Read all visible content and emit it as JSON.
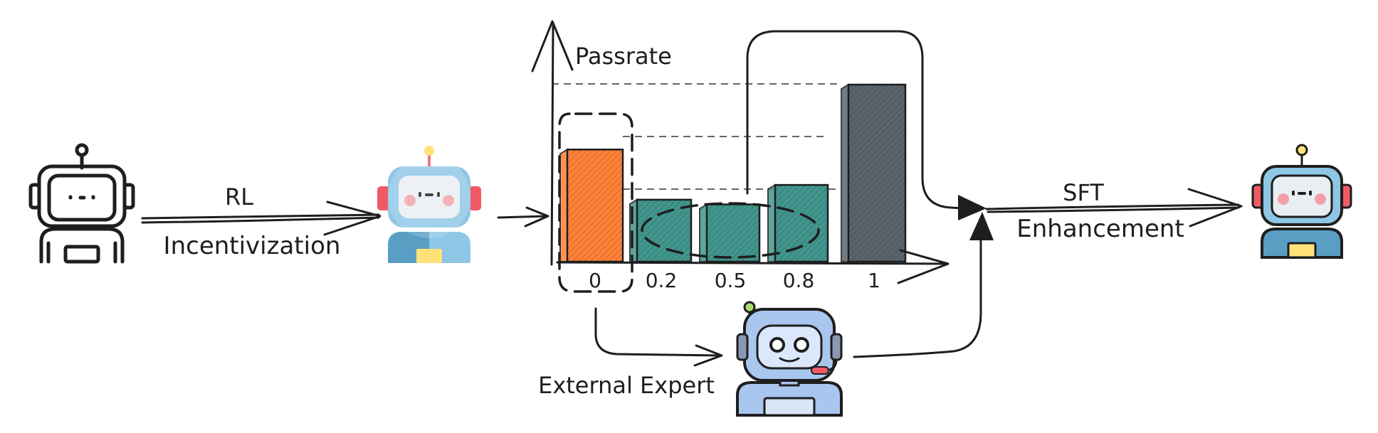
{
  "labels": {
    "rl": "RL",
    "incentivization": "Incentivization",
    "passrate": "Passrate",
    "sft": "SFT",
    "enhancement": "Enhancement",
    "external_expert": "External Expert"
  },
  "chart_data": {
    "type": "bar",
    "ylabel": "Passrate",
    "categories": [
      "0",
      "0.2",
      "0.5",
      "0.8",
      "1"
    ],
    "values": [
      1.9,
      1.05,
      0.97,
      1.3,
      3.0
    ],
    "colors": [
      "#fd8238",
      "#41968d",
      "#41968d",
      "#41968d",
      "#5a646c"
    ],
    "grid": "dashed",
    "highlight_categories": [
      "0"
    ]
  },
  "icons": {
    "base_robot": "outline-robot-icon",
    "rl_robot": "blue-robot-icon",
    "expert_robot": "headset-robot-icon",
    "final_robot": "blue-robot-icon"
  },
  "colors": {
    "ink": "#1e1e1e",
    "orange": "#fd8238",
    "teal": "#41968d",
    "slate": "#5a646c",
    "robot_blue": "#8ec6e6",
    "robot_blue_dark": "#5a9ec4",
    "expert_blue": "#a9c6ef",
    "cheek": "#f2a0a8",
    "ear_red": "#ef5a65",
    "chest_yellow": "#ffe27a"
  }
}
